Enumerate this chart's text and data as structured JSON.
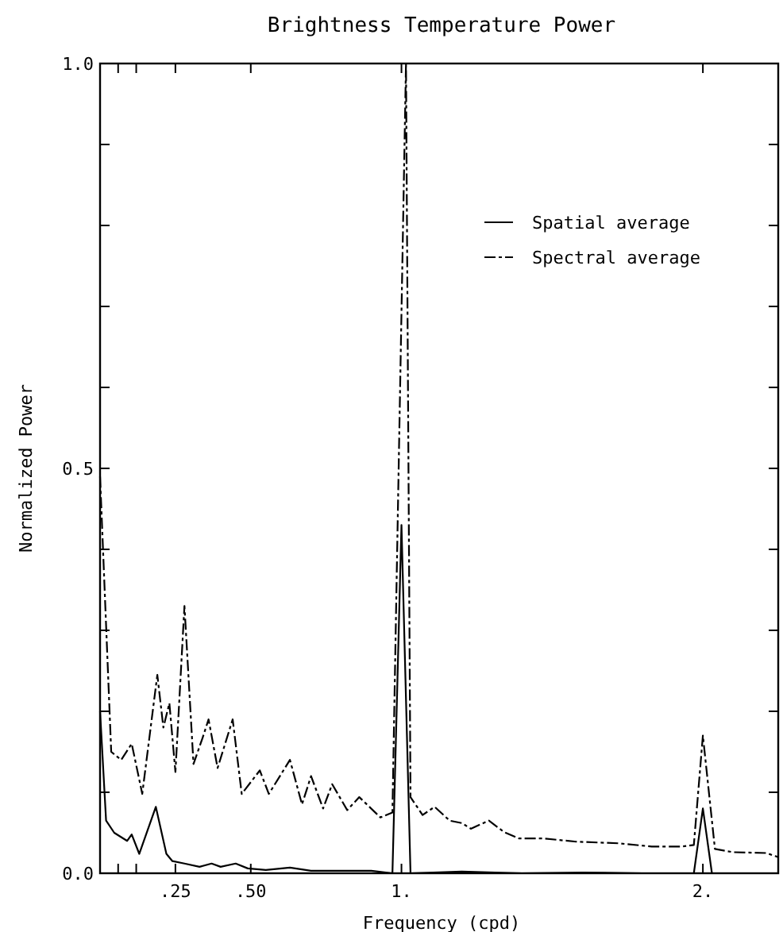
{
  "chart_data": {
    "type": "line",
    "title": "Brightness Temperature Power",
    "xlabel": "Frequency (cpd)",
    "ylabel": "Normalized Power",
    "xlim": [
      0,
      2.25
    ],
    "ylim": [
      0,
      1
    ],
    "xticks": [
      {
        "value": 0.06,
        "label": null
      },
      {
        "value": 0.12,
        "label": null
      },
      {
        "value": 0.25,
        "label": ".25"
      },
      {
        "value": 0.5,
        "label": ".50"
      },
      {
        "value": 1,
        "label": "1."
      },
      {
        "value": 2,
        "label": "2."
      }
    ],
    "yticks": [
      {
        "value": 0,
        "label": "0.0"
      },
      {
        "value": 0.1,
        "label": null
      },
      {
        "value": 0.2,
        "label": null
      },
      {
        "value": 0.3,
        "label": null
      },
      {
        "value": 0.4,
        "label": null
      },
      {
        "value": 0.5,
        "label": "0.5"
      },
      {
        "value": 0.6,
        "label": null
      },
      {
        "value": 0.7,
        "label": null
      },
      {
        "value": 0.8,
        "label": null
      },
      {
        "value": 0.9,
        "label": null
      },
      {
        "value": 1,
        "label": "1.0"
      }
    ],
    "grid": false,
    "legend": "top right",
    "marker": "none",
    "series": [
      {
        "name": "Spatial average",
        "color": "#000000",
        "line_style": "solid",
        "x": [
          0,
          0.02,
          0.047,
          0.09,
          0.105,
          0.13,
          0.185,
          0.22,
          0.24,
          0.28,
          0.33,
          0.37,
          0.4,
          0.45,
          0.49,
          0.55,
          0.63,
          0.7,
          0.8,
          0.9,
          0.97,
          1.0,
          1.03,
          1.2,
          1.4,
          1.6,
          1.8,
          1.97,
          2.0,
          2.03,
          2.25
        ],
        "values": [
          0.2,
          0.065,
          0.05,
          0.04,
          0.048,
          0.024,
          0.082,
          0.024,
          0.015,
          0.012,
          0.008,
          0.012,
          0.008,
          0.012,
          0.006,
          0.004,
          0.007,
          0.003,
          0.003,
          0.003,
          0,
          0.43,
          0,
          0.002,
          0,
          0.001,
          0,
          0,
          0.08,
          0,
          0
        ]
      },
      {
        "name": "Spectral average",
        "color": "#000000",
        "line_style": "dashed",
        "x": [
          0,
          0.037,
          0.07,
          0.105,
          0.14,
          0.19,
          0.21,
          0.23,
          0.25,
          0.28,
          0.31,
          0.34,
          0.36,
          0.39,
          0.44,
          0.47,
          0.53,
          0.56,
          0.63,
          0.67,
          0.7,
          0.74,
          0.77,
          0.82,
          0.86,
          0.93,
          0.97,
          1.015,
          1.03,
          1.07,
          1.11,
          1.16,
          1.2,
          1.23,
          1.29,
          1.34,
          1.39,
          1.47,
          1.58,
          1.72,
          1.83,
          1.93,
          1.97,
          2.0,
          2.04,
          2.1,
          2.21,
          2.25
        ],
        "values": [
          0.49,
          0.15,
          0.14,
          0.16,
          0.098,
          0.245,
          0.18,
          0.21,
          0.125,
          0.33,
          0.135,
          0.167,
          0.19,
          0.13,
          0.19,
          0.098,
          0.127,
          0.098,
          0.14,
          0.085,
          0.12,
          0.08,
          0.11,
          0.078,
          0.094,
          0.069,
          0.075,
          1.0,
          0.094,
          0.072,
          0.082,
          0.065,
          0.062,
          0.055,
          0.065,
          0.051,
          0.043,
          0.043,
          0.039,
          0.037,
          0.033,
          0.033,
          0.035,
          0.17,
          0.03,
          0.026,
          0.025,
          0.02
        ]
      }
    ]
  }
}
